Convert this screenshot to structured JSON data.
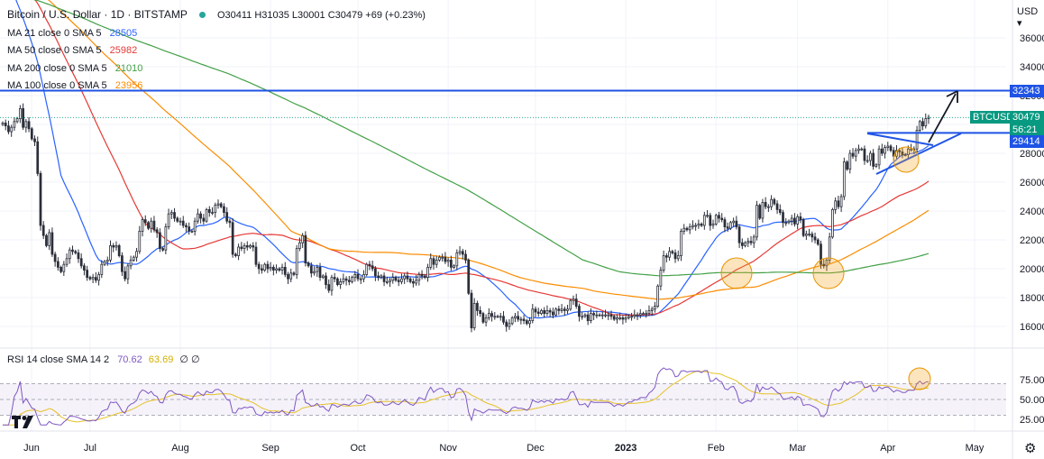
{
  "header": {
    "title": "Bitcoin / U.S. Dollar · 1D · BITSTAMP",
    "ohlc": "O30411 H31035 L30001 C30479 +69 (+0.23%)",
    "status_color": "#26a69a"
  },
  "indicators": [
    {
      "label": "MA 21 close 0 SMA 5",
      "value": "28505",
      "color": "#2962ff"
    },
    {
      "label": "MA 50 close 0 SMA 5",
      "value": "25982",
      "color": "#e53935"
    },
    {
      "label": "MA 200 close 0 SMA 5",
      "value": "21010",
      "color": "#43a047"
    },
    {
      "label": "MA 100 close 0 SMA 5",
      "value": "23956",
      "color": "#fb8c00"
    }
  ],
  "rsi_legend": {
    "label": "RSI 14 close SMA 14 2",
    "rsi_value": "70.62",
    "sma_value": "63.69",
    "extra": "∅ ∅",
    "rsi_color": "#7e57c2",
    "sma_color": "#e6c229"
  },
  "currency": "USD",
  "price_tags": {
    "resistance": "32343",
    "symbol": "BTCUSD",
    "last": "30479",
    "countdown": "56:21",
    "support": "29414"
  },
  "chart_data": [
    {
      "type": "candlestick",
      "title": "Bitcoin / U.S. Dollar · 1D · BITSTAMP",
      "x_ticks": [
        "Jun",
        "Jul",
        "Aug",
        "Sep",
        "Oct",
        "Nov",
        "Dec",
        "2023",
        "Feb",
        "Mar",
        "Apr",
        "May"
      ],
      "y_ticks": [
        16000,
        18000,
        20000,
        22000,
        24000,
        26000,
        28000,
        30000,
        32000,
        34000,
        36000
      ],
      "y_range": [
        15200,
        37000
      ],
      "close_series": [
        {
          "month": "Jun",
          "start": 30000,
          "points": [
            30100,
            29900,
            29500,
            29800,
            30200,
            30400,
            31100,
            29800,
            30200,
            29700,
            29000,
            28800,
            26600,
            23000,
            22300,
            21600,
            22500,
            21000,
            20500,
            20100,
            19800,
            20300,
            20700,
            21300,
            21200,
            21100,
            20700,
            20200,
            19900,
            19400
          ]
        },
        {
          "month": "Jul",
          "points": [
            19300,
            19400,
            19200,
            19600,
            20300,
            20500,
            20600,
            21600,
            21500,
            21600,
            20900,
            19800,
            19300,
            20200,
            20600,
            20800,
            21200,
            22600,
            23400,
            23200,
            22800,
            23300,
            22700,
            22500,
            21400,
            21300,
            22900,
            23800,
            23900,
            23500,
            23300
          ]
        },
        {
          "month": "Aug",
          "points": [
            23300,
            23000,
            22900,
            22600,
            22600,
            23300,
            23800,
            23500,
            23300,
            24100,
            23900,
            23900,
            24400,
            24500,
            24300,
            23900,
            23300,
            23200,
            21000,
            20900,
            21500,
            21400,
            21600,
            21500,
            21600,
            21500,
            20300,
            20000,
            19900,
            20300,
            20000
          ]
        },
        {
          "month": "Sep",
          "points": [
            20100,
            19900,
            20000,
            19900,
            20100,
            19600,
            19300,
            19700,
            19600,
            21400,
            21800,
            22300,
            20400,
            20200,
            19700,
            19800,
            20100,
            19400,
            19500,
            18900,
            18500,
            19400,
            19300,
            18900,
            19100,
            19300,
            19200,
            19100,
            19400,
            19600
          ]
        },
        {
          "month": "Oct",
          "points": [
            19300,
            19300,
            19600,
            20300,
            20200,
            20000,
            19500,
            19400,
            19500,
            19100,
            19100,
            19200,
            19400,
            19200,
            19100,
            19300,
            19500,
            19300,
            19100,
            19000,
            19200,
            19600,
            19500,
            19400,
            20100,
            20700,
            20300,
            20600,
            20800,
            20800,
            20500
          ]
        },
        {
          "month": "Nov",
          "points": [
            20600,
            20100,
            20200,
            21100,
            21200,
            21000,
            20600,
            18300,
            15900,
            17600,
            17100,
            16900,
            16300,
            16600,
            16900,
            16700,
            16700,
            16700,
            16700,
            16300,
            16000,
            16200,
            16600,
            16700,
            16500,
            16500,
            16400,
            16200,
            16400,
            17200
          ]
        },
        {
          "month": "Dec",
          "points": [
            17000,
            16900,
            17100,
            16900,
            17100,
            17000,
            16800,
            17200,
            17100,
            17200,
            17100,
            17200,
            17800,
            17900,
            17400,
            16700,
            16700,
            16800,
            16400,
            16900,
            16800,
            16800,
            16800,
            16800,
            16800,
            16800,
            16700,
            16500,
            16600,
            16600,
            16500
          ]
        },
        {
          "month": "Jan",
          "points": [
            16600,
            16700,
            16700,
            16800,
            16800,
            16900,
            16900,
            16900,
            17100,
            17200,
            17400,
            18800,
            19900,
            20900,
            20800,
            21200,
            21100,
            20700,
            20900,
            22600,
            22800,
            22700,
            22900,
            23000,
            23000,
            23100,
            23000,
            23700,
            23700,
            23000,
            23100
          ]
        },
        {
          "month": "Feb",
          "points": [
            23700,
            23500,
            23400,
            22900,
            22800,
            23200,
            23300,
            22900,
            21800,
            21600,
            21800,
            21900,
            21800,
            22200,
            24400,
            23500,
            24600,
            24300,
            24300,
            24800,
            24500,
            24100,
            23900,
            23200,
            23200,
            23300,
            23500,
            23100
          ]
        },
        {
          "month": "Mar",
          "points": [
            23600,
            23400,
            22300,
            22400,
            22400,
            22200,
            22000,
            21700,
            20300,
            20200,
            20600,
            22200,
            24100,
            24700,
            24300,
            25000,
            27400,
            26900,
            28000,
            27800,
            28200,
            28300,
            28300,
            27500,
            27500,
            28000,
            27100,
            27200,
            28300,
            28000,
            28400
          ]
        },
        {
          "month": "Apr",
          "points": [
            28500,
            28200,
            27800,
            28200,
            28100,
            27900,
            27900,
            28300,
            28300,
            28300,
            29600,
            30200,
            29900,
            30400,
            30500
          ]
        }
      ],
      "moving_averages": [
        {
          "name": "MA 21 close 0 SMA 5",
          "last": 28505
        },
        {
          "name": "MA 50 close 0 SMA 5",
          "last": 25982
        },
        {
          "name": "MA 100 close 0 SMA 5",
          "last": 23956
        },
        {
          "name": "MA 200 close 0 SMA 5",
          "last": 21010
        }
      ],
      "horizontal_levels": [
        {
          "label": "32343",
          "value": 32343
        },
        {
          "label": "29414",
          "value": 29414
        },
        {
          "label": "30479",
          "value": 30479
        }
      ],
      "annotations": [
        "ascending triangle",
        "projection arrow up to 32343",
        "highlight circles at MA touches"
      ]
    },
    {
      "type": "line",
      "title": "RSI 14 close SMA 14 2",
      "y_ticks": [
        25,
        50,
        75
      ],
      "y_range": [
        18,
        97
      ],
      "bands": [
        30,
        70
      ],
      "rsi_last": 70.62,
      "sma_last": 63.69
    }
  ]
}
